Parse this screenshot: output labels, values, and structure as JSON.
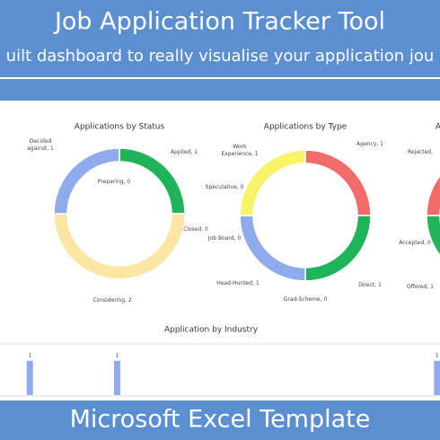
{
  "header": {
    "title": "Job Application Tracker Tool",
    "subtitle": "uilt dashboard to really visualise your application jou"
  },
  "footer": {
    "title": "Microsoft Excel Template"
  },
  "chart_data": [
    {
      "type": "pie",
      "title": "Applications by Status",
      "values": [
        1,
        0,
        2,
        1,
        0
      ],
      "value_labels": [
        "Applied, 1",
        "Closed, 0",
        "Considering, 2",
        "Decided against, 1",
        "Preparing, 0"
      ],
      "colors": [
        "#1fb45a",
        null,
        "#fde5a3",
        "#8eabee",
        null
      ]
    },
    {
      "type": "pie",
      "title": "Applications by Type",
      "values": [
        1,
        1,
        0,
        1,
        0,
        0,
        1
      ],
      "value_labels": [
        "Agency, 1",
        "Direct, 1",
        "Grad-Scheme, 0",
        "Head-Hunted, 1",
        "Job Board, 0",
        "Speculative, 0",
        "Work Experience, 1"
      ],
      "colors": [
        "#f26b6b",
        "#1fb45a",
        null,
        "#8eabee",
        null,
        null,
        "#f9f36a"
      ]
    },
    {
      "type": "pie",
      "title": "A",
      "values": [
        0,
        1,
        1
      ],
      "value_labels": [
        "Accepted, 0",
        "Offered, 1",
        "Rejected,"
      ],
      "colors": [
        null,
        "#1fb45a",
        "#f26b6b"
      ]
    },
    {
      "type": "bar",
      "title": "Application by Industry",
      "values": [
        1,
        0,
        0,
        1,
        0,
        0,
        0,
        0,
        0,
        0,
        0,
        0,
        0,
        0,
        1
      ],
      "color": "#8eabee",
      "ylim": [
        0,
        1.1
      ]
    }
  ]
}
